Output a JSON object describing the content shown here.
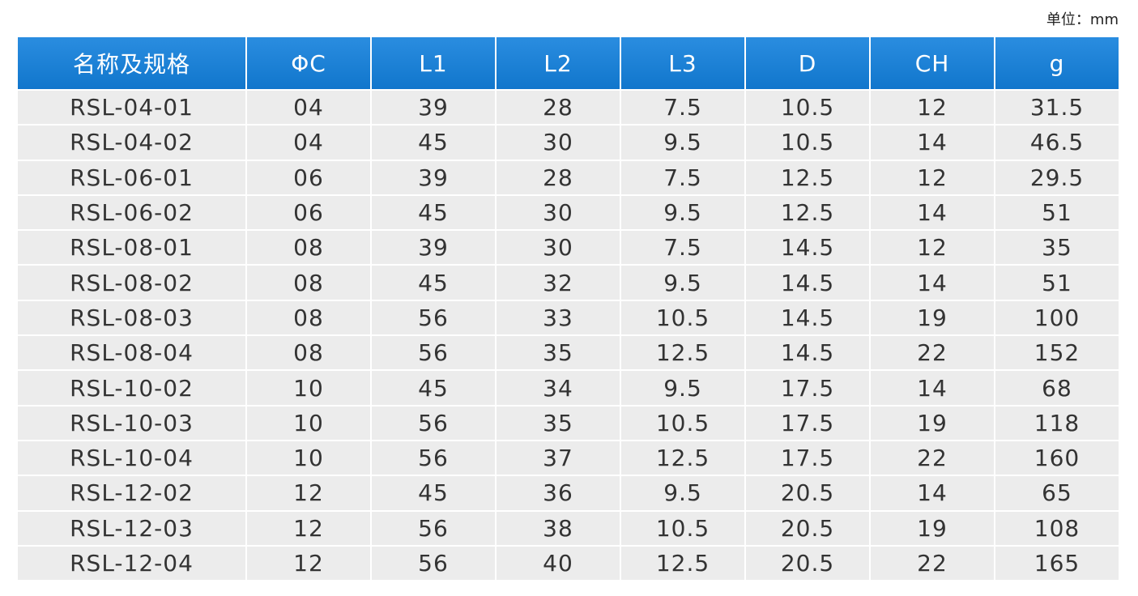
{
  "unit": "单位：mm",
  "table": {
    "header": [
      "名称及规格",
      "ΦC",
      "L1",
      "L2",
      "L3",
      "D",
      "CH",
      "g"
    ],
    "rows": [
      [
        "RSL-04-01",
        "04",
        "39",
        "28",
        "7.5",
        "10.5",
        "12",
        "31.5"
      ],
      [
        "RSL-04-02",
        "04",
        "45",
        "30",
        "9.5",
        "10.5",
        "14",
        "46.5"
      ],
      [
        "RSL-06-01",
        "06",
        "39",
        "28",
        "7.5",
        "12.5",
        "12",
        "29.5"
      ],
      [
        "RSL-06-02",
        "06",
        "45",
        "30",
        "9.5",
        "12.5",
        "14",
        "51"
      ],
      [
        "RSL-08-01",
        "08",
        "39",
        "30",
        "7.5",
        "14.5",
        "12",
        "35"
      ],
      [
        "RSL-08-02",
        "08",
        "45",
        "32",
        "9.5",
        "14.5",
        "14",
        "51"
      ],
      [
        "RSL-08-03",
        "08",
        "56",
        "33",
        "10.5",
        "14.5",
        "19",
        "100"
      ],
      [
        "RSL-08-04",
        "08",
        "56",
        "35",
        "12.5",
        "14.5",
        "22",
        "152"
      ],
      [
        "RSL-10-02",
        "10",
        "45",
        "34",
        "9.5",
        "17.5",
        "14",
        "68"
      ],
      [
        "RSL-10-03",
        "10",
        "56",
        "35",
        "10.5",
        "17.5",
        "19",
        "118"
      ],
      [
        "RSL-10-04",
        "10",
        "56",
        "37",
        "12.5",
        "17.5",
        "22",
        "160"
      ],
      [
        "RSL-12-02",
        "12",
        "45",
        "36",
        "9.5",
        "20.5",
        "14",
        "65"
      ],
      [
        "RSL-12-03",
        "12",
        "56",
        "38",
        "10.5",
        "20.5",
        "19",
        "108"
      ],
      [
        "RSL-12-04",
        "12",
        "56",
        "40",
        "12.5",
        "20.5",
        "22",
        "165"
      ]
    ]
  }
}
